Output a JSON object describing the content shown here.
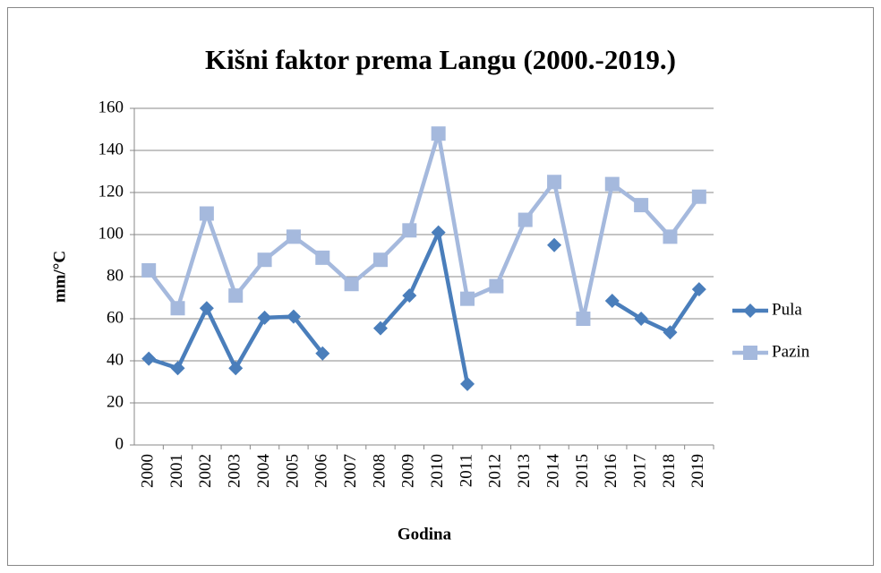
{
  "chart_data": {
    "type": "line",
    "title": "Kišni faktor prema Langu (2000.-2019.)",
    "x_label": "Godina",
    "y_label": "mm/°C",
    "categories": [
      "2000",
      "2001",
      "2002",
      "2003",
      "2004",
      "2005",
      "2006",
      "2007",
      "2008",
      "2009",
      "2010",
      "2011",
      "2012",
      "2013",
      "2014",
      "2015",
      "2016",
      "2017",
      "2018",
      "2019"
    ],
    "series": [
      {
        "name": "Pula",
        "color": "#4a7ebb",
        "marker": "diamond",
        "values": [
          41,
          36.5,
          65,
          36.5,
          60.5,
          61,
          43.5,
          null,
          55.5,
          71,
          101,
          29,
          null,
          null,
          95,
          null,
          68.5,
          60,
          53.5,
          74
        ]
      },
      {
        "name": "Pazin",
        "color": "#a5b9dd",
        "marker": "square",
        "values": [
          83,
          65,
          110,
          71,
          88,
          99,
          89,
          76.5,
          88,
          102,
          148,
          69.5,
          75.5,
          107,
          125,
          60,
          124,
          114,
          99,
          118
        ]
      }
    ],
    "ylim": [
      0,
      160
    ],
    "yticks": [
      0,
      20,
      40,
      60,
      80,
      100,
      120,
      140,
      160
    ],
    "grid": true,
    "legend": "right"
  }
}
